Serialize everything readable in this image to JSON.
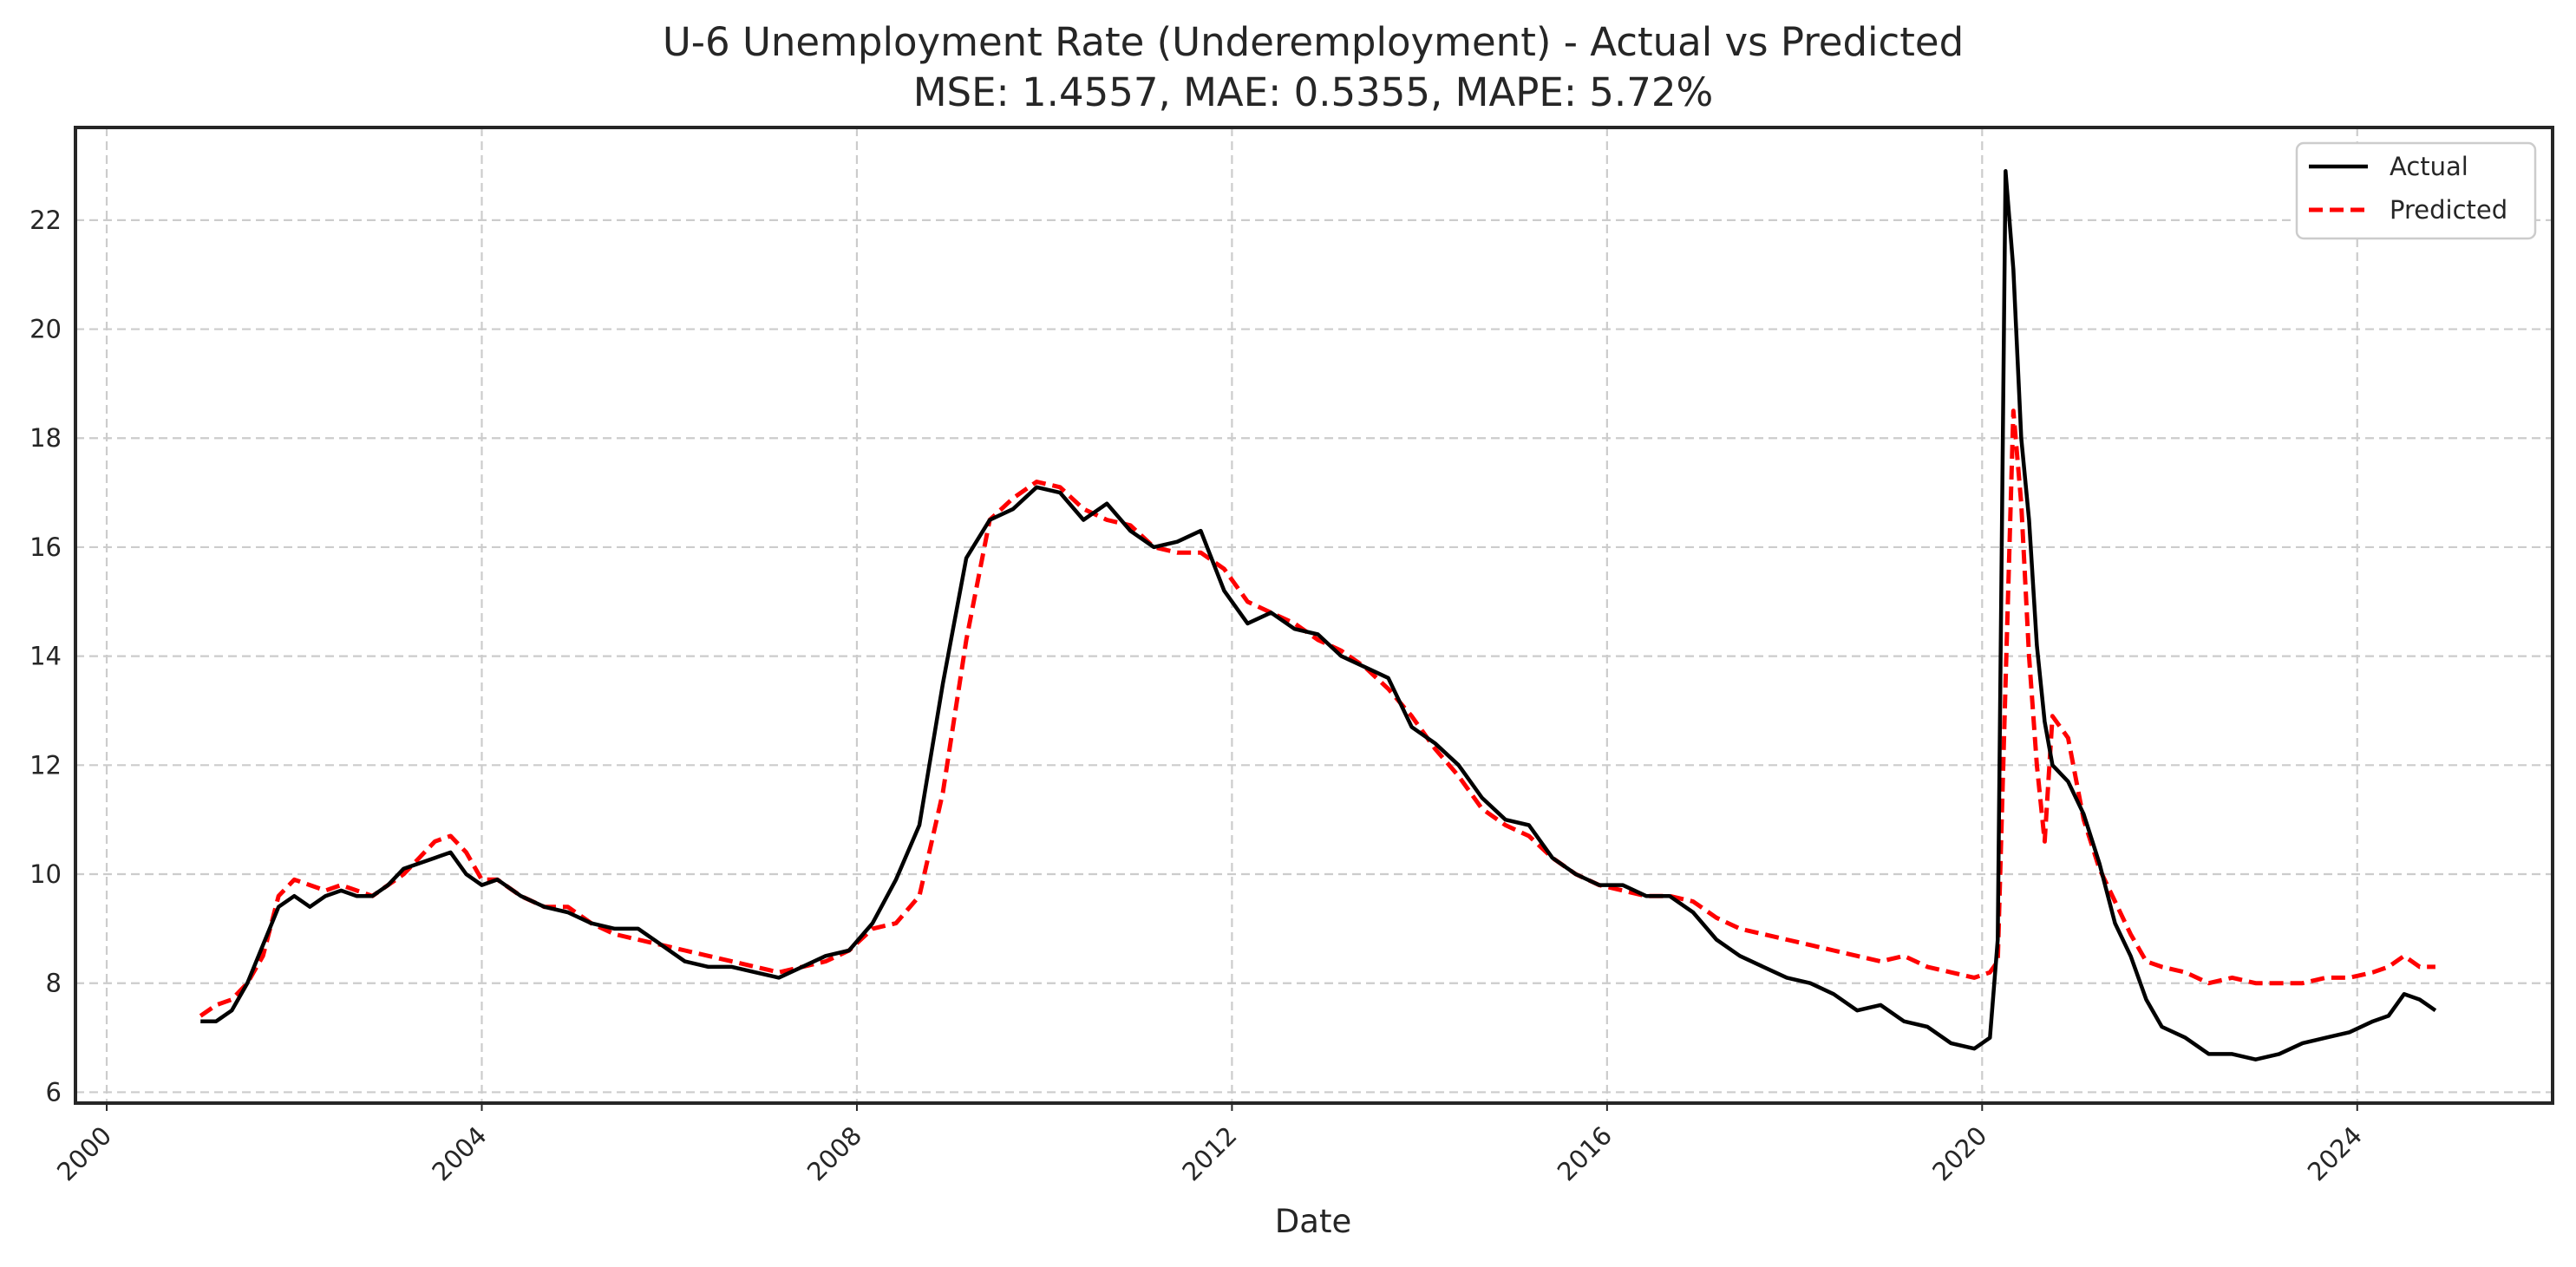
{
  "chart_data": {
    "type": "line",
    "title": "U-6 Unemployment Rate (Underemployment) - Actual vs Predicted",
    "subtitle": "MSE: 1.4557, MAE: 0.5355, MAPE: 5.72%",
    "xlabel": "Date",
    "ylabel": "",
    "xlim": [
      "1999-09-01",
      "2026-02-01"
    ],
    "ylim": [
      5.8,
      23.7
    ],
    "x_ticks": [
      "2000",
      "2004",
      "2008",
      "2012",
      "2016",
      "2020",
      "2024"
    ],
    "y_ticks": [
      6,
      8,
      10,
      12,
      14,
      16,
      18,
      20,
      22
    ],
    "grid": true,
    "legend_position": "top-right",
    "colors": {
      "actual": "#000000",
      "predicted": "#ff0000",
      "grid": "#cccccc",
      "frame": "#262626"
    },
    "series": [
      {
        "name": "Actual",
        "style": "solid",
        "x": [
          "2001-01",
          "2001-03",
          "2001-05",
          "2001-07",
          "2001-09",
          "2001-11",
          "2002-01",
          "2002-03",
          "2002-05",
          "2002-07",
          "2002-09",
          "2002-11",
          "2003-01",
          "2003-03",
          "2003-05",
          "2003-07",
          "2003-09",
          "2003-11",
          "2004-01",
          "2004-03",
          "2004-06",
          "2004-09",
          "2004-12",
          "2005-03",
          "2005-06",
          "2005-09",
          "2005-12",
          "2006-03",
          "2006-06",
          "2006-09",
          "2006-12",
          "2007-03",
          "2007-06",
          "2007-09",
          "2007-12",
          "2008-03",
          "2008-06",
          "2008-09",
          "2008-12",
          "2009-03",
          "2009-06",
          "2009-09",
          "2009-12",
          "2010-03",
          "2010-06",
          "2010-09",
          "2010-12",
          "2011-03",
          "2011-06",
          "2011-09",
          "2011-12",
          "2012-03",
          "2012-06",
          "2012-09",
          "2012-12",
          "2013-03",
          "2013-06",
          "2013-09",
          "2013-12",
          "2014-03",
          "2014-06",
          "2014-09",
          "2014-12",
          "2015-03",
          "2015-06",
          "2015-09",
          "2015-12",
          "2016-03",
          "2016-06",
          "2016-09",
          "2016-12",
          "2017-03",
          "2017-06",
          "2017-09",
          "2017-12",
          "2018-03",
          "2018-06",
          "2018-09",
          "2018-12",
          "2019-03",
          "2019-06",
          "2019-09",
          "2019-12",
          "2020-02",
          "2020-03",
          "2020-04",
          "2020-05",
          "2020-06",
          "2020-07",
          "2020-08",
          "2020-09",
          "2020-10",
          "2020-12",
          "2021-02",
          "2021-04",
          "2021-06",
          "2021-08",
          "2021-10",
          "2021-12",
          "2022-03",
          "2022-06",
          "2022-09",
          "2022-12",
          "2023-03",
          "2023-06",
          "2023-09",
          "2023-12",
          "2024-03",
          "2024-05",
          "2024-07",
          "2024-09",
          "2024-11"
        ],
        "values": [
          7.3,
          7.3,
          7.5,
          8.0,
          8.7,
          9.4,
          9.6,
          9.4,
          9.6,
          9.7,
          9.6,
          9.6,
          9.8,
          10.1,
          10.2,
          10.3,
          10.4,
          10.0,
          9.8,
          9.9,
          9.6,
          9.4,
          9.3,
          9.1,
          9.0,
          9.0,
          8.7,
          8.4,
          8.3,
          8.3,
          8.2,
          8.1,
          8.3,
          8.5,
          8.6,
          9.1,
          9.9,
          10.9,
          13.5,
          15.8,
          16.5,
          16.7,
          17.1,
          17.0,
          16.5,
          16.8,
          16.3,
          16.0,
          16.1,
          16.3,
          15.2,
          14.6,
          14.8,
          14.5,
          14.4,
          14.0,
          13.8,
          13.6,
          12.7,
          12.4,
          12.0,
          11.4,
          11.0,
          10.9,
          10.3,
          10.0,
          9.8,
          9.8,
          9.6,
          9.6,
          9.3,
          8.8,
          8.5,
          8.3,
          8.1,
          8.0,
          7.8,
          7.5,
          7.6,
          7.3,
          7.2,
          6.9,
          6.8,
          7.0,
          8.8,
          22.9,
          21.1,
          18.0,
          16.5,
          14.2,
          12.8,
          12.0,
          11.7,
          11.1,
          10.2,
          9.1,
          8.5,
          7.7,
          7.2,
          7.0,
          6.7,
          6.7,
          6.6,
          6.7,
          6.9,
          7.0,
          7.1,
          7.3,
          7.4,
          7.8,
          7.7,
          7.5
        ]
      },
      {
        "name": "Predicted",
        "style": "dashed",
        "x": [
          "2001-01",
          "2001-03",
          "2001-05",
          "2001-07",
          "2001-09",
          "2001-11",
          "2002-01",
          "2002-03",
          "2002-05",
          "2002-07",
          "2002-09",
          "2002-11",
          "2003-01",
          "2003-03",
          "2003-05",
          "2003-07",
          "2003-09",
          "2003-11",
          "2004-01",
          "2004-03",
          "2004-06",
          "2004-09",
          "2004-12",
          "2005-03",
          "2005-06",
          "2005-09",
          "2005-12",
          "2006-03",
          "2006-06",
          "2006-09",
          "2006-12",
          "2007-03",
          "2007-06",
          "2007-09",
          "2007-12",
          "2008-03",
          "2008-06",
          "2008-09",
          "2008-12",
          "2009-03",
          "2009-06",
          "2009-09",
          "2009-12",
          "2010-03",
          "2010-06",
          "2010-09",
          "2010-12",
          "2011-03",
          "2011-06",
          "2011-09",
          "2011-12",
          "2012-03",
          "2012-06",
          "2012-09",
          "2012-12",
          "2013-03",
          "2013-06",
          "2013-09",
          "2013-12",
          "2014-03",
          "2014-06",
          "2014-09",
          "2014-12",
          "2015-03",
          "2015-06",
          "2015-09",
          "2015-12",
          "2016-03",
          "2016-06",
          "2016-09",
          "2016-12",
          "2017-03",
          "2017-06",
          "2017-09",
          "2017-12",
          "2018-03",
          "2018-06",
          "2018-09",
          "2018-12",
          "2019-03",
          "2019-06",
          "2019-09",
          "2019-12",
          "2020-02",
          "2020-03",
          "2020-04",
          "2020-05",
          "2020-06",
          "2020-07",
          "2020-08",
          "2020-09",
          "2020-10",
          "2020-12",
          "2021-02",
          "2021-04",
          "2021-06",
          "2021-08",
          "2021-10",
          "2021-12",
          "2022-03",
          "2022-06",
          "2022-09",
          "2022-12",
          "2023-03",
          "2023-06",
          "2023-09",
          "2023-12",
          "2024-03",
          "2024-05",
          "2024-07",
          "2024-09",
          "2024-11"
        ],
        "values": [
          7.4,
          7.6,
          7.7,
          8.0,
          8.5,
          9.6,
          9.9,
          9.8,
          9.7,
          9.8,
          9.7,
          9.6,
          9.8,
          10.0,
          10.3,
          10.6,
          10.7,
          10.4,
          9.9,
          9.9,
          9.6,
          9.4,
          9.4,
          9.1,
          8.9,
          8.8,
          8.7,
          8.6,
          8.5,
          8.4,
          8.3,
          8.2,
          8.3,
          8.4,
          8.6,
          9.0,
          9.1,
          9.6,
          11.5,
          14.3,
          16.5,
          16.9,
          17.2,
          17.1,
          16.7,
          16.5,
          16.4,
          16.0,
          15.9,
          15.9,
          15.6,
          15.0,
          14.8,
          14.6,
          14.3,
          14.1,
          13.8,
          13.4,
          12.9,
          12.3,
          11.8,
          11.2,
          10.9,
          10.7,
          10.3,
          10.0,
          9.8,
          9.7,
          9.6,
          9.6,
          9.5,
          9.2,
          9.0,
          8.9,
          8.8,
          8.7,
          8.6,
          8.5,
          8.4,
          8.5,
          8.3,
          8.2,
          8.1,
          8.2,
          8.4,
          13.5,
          18.5,
          16.8,
          14.0,
          12.0,
          10.6,
          12.9,
          12.5,
          11.0,
          10.1,
          9.5,
          8.9,
          8.4,
          8.3,
          8.2,
          8.0,
          8.1,
          8.0,
          8.0,
          8.0,
          8.1,
          8.1,
          8.2,
          8.3,
          8.5,
          8.3,
          8.3
        ]
      }
    ]
  }
}
